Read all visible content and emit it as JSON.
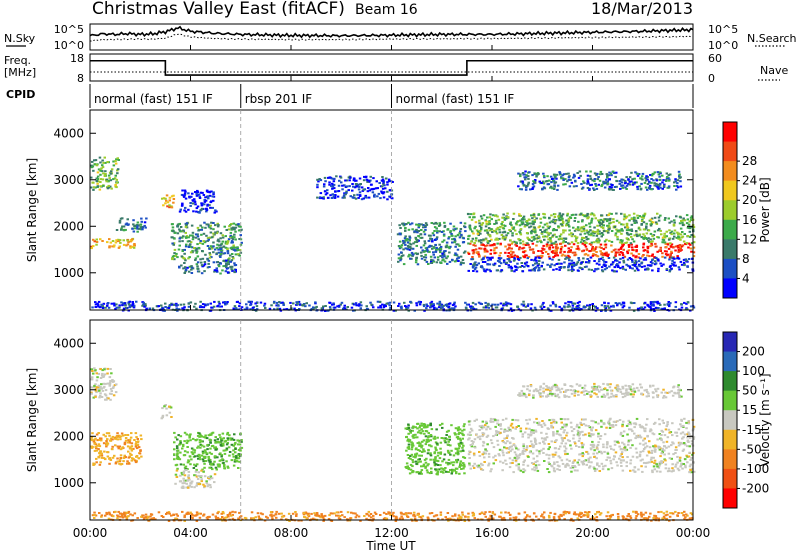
{
  "header": {
    "station": "Christmas Valley East (fitACF)",
    "beam": "Beam 16",
    "date": "18/Mar/2013"
  },
  "chart_data": [
    {
      "type": "line",
      "name": "noise",
      "left_label": "N.Sky",
      "right_label": "N.Search",
      "left_ticks": [
        "10^5",
        "10^0"
      ],
      "right_ticks": [
        "10^5",
        "10^0"
      ],
      "x": [
        "00:00",
        "00:30",
        "01:00",
        "01:30",
        "02:00",
        "02:30",
        "03:00",
        "03:30",
        "04:00",
        "05:00",
        "06:00",
        "08:00",
        "10:00",
        "12:00",
        "14:00",
        "16:00",
        "18:00",
        "20:00",
        "22:00",
        "24:00"
      ],
      "series": [
        {
          "name": "N.Sky",
          "style": "solid",
          "values": [
            0.55,
            0.62,
            0.6,
            0.63,
            0.6,
            0.62,
            0.7,
            0.85,
            0.72,
            0.64,
            0.6,
            0.56,
            0.55,
            0.57,
            0.6,
            0.6,
            0.64,
            0.68,
            0.72,
            0.78
          ]
        },
        {
          "name": "N.Search",
          "style": "dotted",
          "values": [
            0.35,
            0.4,
            0.4,
            0.42,
            0.42,
            0.42,
            0.45,
            0.62,
            0.5,
            0.44,
            0.42,
            0.4,
            0.4,
            0.42,
            0.43,
            0.44,
            0.46,
            0.48,
            0.5,
            0.52
          ]
        }
      ]
    },
    {
      "type": "line",
      "name": "frequency",
      "left_label": "Freq.",
      "left_unit": "[MHz]",
      "right_label": "Nave",
      "left_ticks": [
        "18",
        "8"
      ],
      "right_ticks": [
        "60",
        "0"
      ],
      "segments": [
        {
          "start": "00:00",
          "end": "03:00",
          "freq_mhz": 15.5,
          "nave": 20
        },
        {
          "start": "03:00",
          "end": "15:00",
          "freq_mhz": 10.2,
          "nave": 20
        },
        {
          "start": "15:00",
          "end": "24:00",
          "freq_mhz": 15.5,
          "nave": 20
        }
      ]
    },
    {
      "type": "table",
      "name": "cpid",
      "label": "CPID",
      "modes": [
        {
          "start": "00:00",
          "end": "06:00",
          "name": "normal (fast) 151 IF"
        },
        {
          "start": "06:00",
          "end": "12:00",
          "name": "rbsp 201 IF"
        },
        {
          "start": "12:00",
          "end": "24:00",
          "name": "normal (fast) 151 IF"
        }
      ]
    },
    {
      "type": "heatmap",
      "name": "power",
      "ylabel": "Slant Range [km]",
      "yticks": [
        1000,
        2000,
        3000,
        4000
      ],
      "ylim": [
        200,
        4500
      ],
      "colorbar_label": "Power [dB]",
      "colorbar_ticks": [
        "4",
        "8",
        "12",
        "16",
        "20",
        "24",
        "28"
      ],
      "colorbar_colors": [
        "#0000ff",
        "#1c4fc4",
        "#3a7a6a",
        "#3caa4a",
        "#9ccc2c",
        "#f0c81e",
        "#f28c1e",
        "#f04a16",
        "#ff0000"
      ],
      "regions": [
        {
          "t0": 0.0,
          "t1": 1.1,
          "r0": 2800,
          "r1": 3500,
          "db": 14
        },
        {
          "t0": 0.0,
          "t1": 1.8,
          "r0": 1550,
          "r1": 1750,
          "db": 22
        },
        {
          "t0": 1.0,
          "t1": 2.2,
          "r0": 1900,
          "r1": 2200,
          "db": 10
        },
        {
          "t0": 2.8,
          "t1": 3.3,
          "r0": 2400,
          "r1": 2700,
          "db": 22
        },
        {
          "t0": 3.2,
          "t1": 6.0,
          "r0": 1300,
          "r1": 2100,
          "db": 12
        },
        {
          "t0": 3.5,
          "t1": 5.8,
          "r0": 1000,
          "r1": 1300,
          "db": 8
        },
        {
          "t0": 3.5,
          "t1": 5.0,
          "r0": 2300,
          "r1": 2800,
          "db": 4
        },
        {
          "t0": 12.2,
          "t1": 14.9,
          "r0": 1200,
          "r1": 2100,
          "db": 10
        },
        {
          "t0": 15.0,
          "t1": 24.0,
          "r0": 1350,
          "r1": 1650,
          "db": 28
        },
        {
          "t0": 15.0,
          "t1": 24.0,
          "r0": 1650,
          "r1": 2300,
          "db": 14
        },
        {
          "t0": 15.0,
          "t1": 24.0,
          "r0": 1050,
          "r1": 1350,
          "db": 6
        },
        {
          "t0": 17.0,
          "t1": 23.5,
          "r0": 2800,
          "r1": 3200,
          "db": 9
        },
        {
          "t0": 9.0,
          "t1": 12.0,
          "r0": 2600,
          "r1": 3100,
          "db": 5
        },
        {
          "t0": 0.0,
          "t1": 24.0,
          "r0": 200,
          "r1": 400,
          "db": 6
        }
      ]
    },
    {
      "type": "heatmap",
      "name": "velocity",
      "ylabel": "Slant Range [km]",
      "yticks": [
        1000,
        2000,
        3000,
        4000
      ],
      "ylim": [
        200,
        4500
      ],
      "xlabel": "Time UT",
      "xticks": [
        "00:00",
        "04:00",
        "08:00",
        "12:00",
        "16:00",
        "20:00",
        "00:00"
      ],
      "colorbar_label": "Velocity [m s⁻¹]",
      "colorbar_ticks": [
        "200",
        "100",
        "50",
        "15",
        "-15",
        "-50",
        "-100",
        "-200"
      ],
      "colorbar_colors": [
        "#2828b4",
        "#2a6ab8",
        "#2e8a2e",
        "#68c836",
        "#c8c8c0",
        "#f0b428",
        "#f08220",
        "#f05014",
        "#ff0000"
      ],
      "regions": [
        {
          "t0": 0.0,
          "t1": 1.0,
          "r0": 2800,
          "r1": 3500,
          "vel": 0
        },
        {
          "t0": 0.0,
          "t1": 2.0,
          "r0": 1400,
          "r1": 2100,
          "vel": -40
        },
        {
          "t0": 2.8,
          "t1": 3.2,
          "r0": 2400,
          "r1": 2700,
          "vel": 0
        },
        {
          "t0": 3.3,
          "t1": 6.0,
          "r0": 1300,
          "r1": 2100,
          "vel": 40
        },
        {
          "t0": 3.3,
          "t1": 5.0,
          "r0": 900,
          "r1": 1300,
          "vel": 0
        },
        {
          "t0": 12.5,
          "t1": 14.9,
          "r0": 1200,
          "r1": 2300,
          "vel": 35
        },
        {
          "t0": 15.0,
          "t1": 24.0,
          "r0": 1250,
          "r1": 2400,
          "vel": 0
        },
        {
          "t0": 17.0,
          "t1": 23.5,
          "r0": 2850,
          "r1": 3150,
          "vel": 0
        },
        {
          "t0": 0.0,
          "t1": 24.0,
          "r0": 200,
          "r1": 400,
          "vel": -60
        }
      ]
    }
  ]
}
